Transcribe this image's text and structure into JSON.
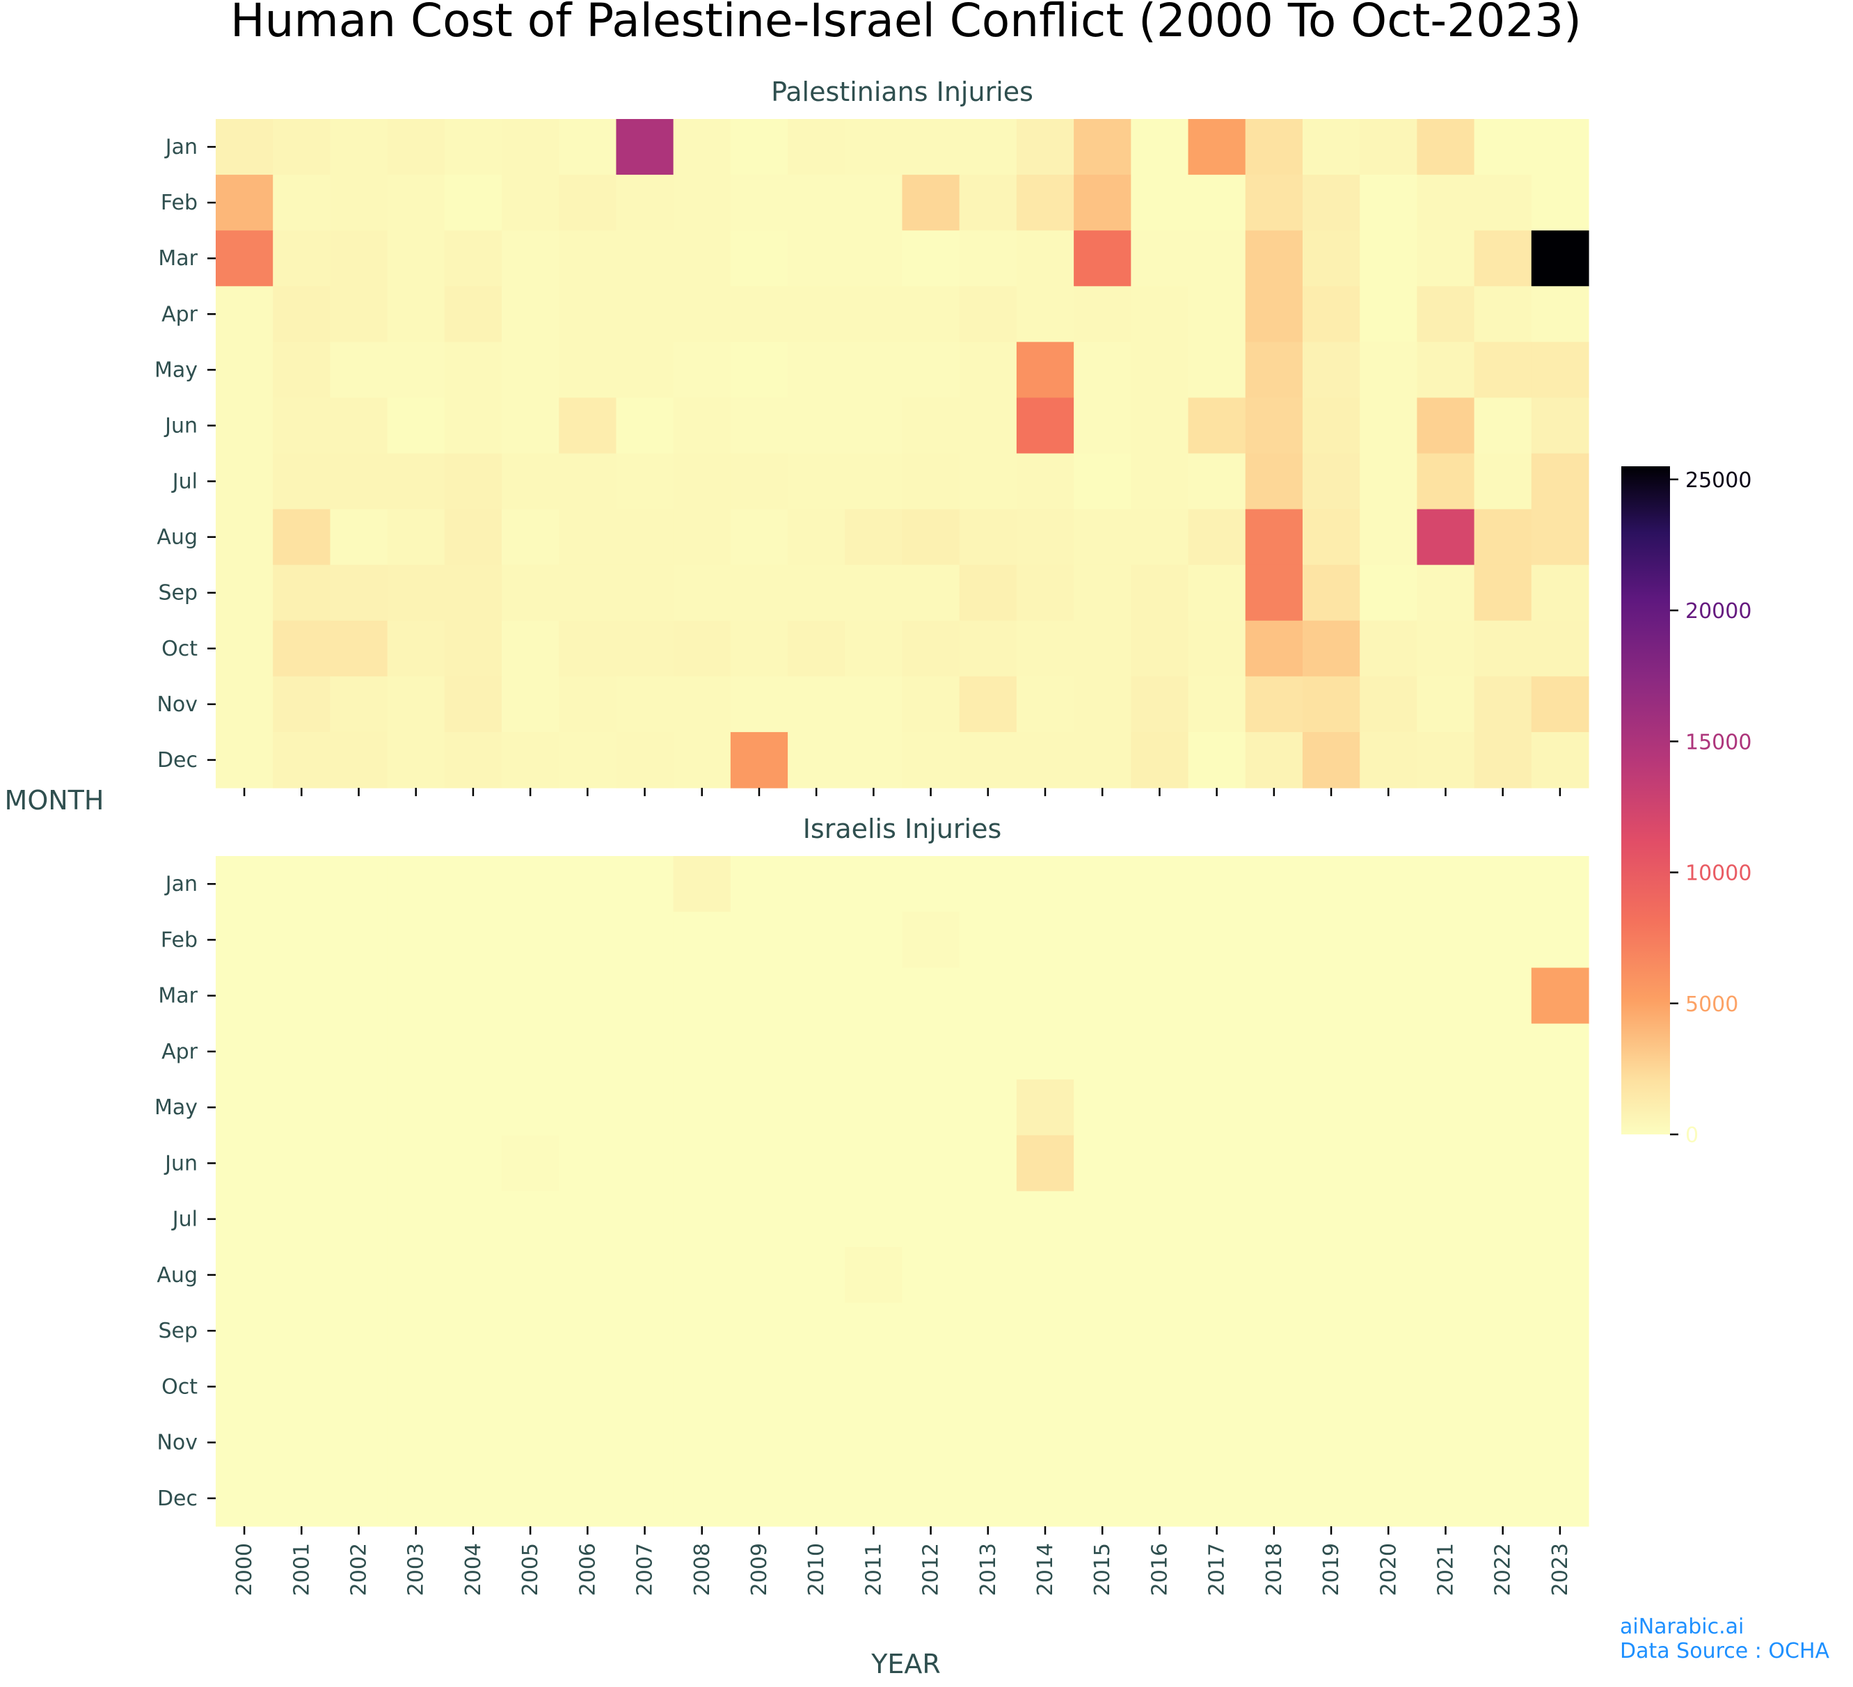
{
  "title": "Human Cost of Palestine-Israel Conflict (2000 To Oct-2023)",
  "xlabel": "YEAR",
  "ylabel": "MONTH",
  "credits": {
    "brand": "aiNarabic.ai",
    "source": "Data Source : OCHA"
  },
  "colors": {
    "text": "#2f4f4f",
    "credit": "#1e90ff",
    "colormap": "magma_r",
    "cmap_stops": [
      [
        0,
        "#fcfdbf"
      ],
      [
        0.08,
        "#fde1a0"
      ],
      [
        0.2,
        "#fca063"
      ],
      [
        0.32,
        "#f4715c"
      ],
      [
        0.44,
        "#e14d67"
      ],
      [
        0.56,
        "#b73779"
      ],
      [
        0.68,
        "#8c2981"
      ],
      [
        0.8,
        "#5f187f"
      ],
      [
        0.9,
        "#2c115f"
      ],
      [
        1,
        "#000004"
      ]
    ]
  },
  "chart_data": {
    "type": "heatmap",
    "title": "Human Cost of Palestine-Israel Conflict (2000 To Oct-2023)",
    "xlabel": "YEAR",
    "ylabel": "MONTH",
    "years": [
      "2000",
      "2001",
      "2002",
      "2003",
      "2004",
      "2005",
      "2006",
      "2007",
      "2008",
      "2009",
      "2010",
      "2011",
      "2012",
      "2013",
      "2014",
      "2015",
      "2016",
      "2017",
      "2018",
      "2019",
      "2020",
      "2021",
      "2022",
      "2023"
    ],
    "months": [
      "Jan",
      "Feb",
      "Mar",
      "Apr",
      "May",
      "Jun",
      "Jul",
      "Aug",
      "Sep",
      "Oct",
      "Nov",
      "Dec"
    ],
    "colorbar": {
      "min": 0,
      "max": 25500,
      "ticks": [
        0,
        5000,
        10000,
        15000,
        20000,
        25000
      ],
      "tick_labels": [
        "0",
        "5000",
        "10000",
        "15000",
        "20000",
        "25000"
      ]
    },
    "panels": [
      {
        "title": "Palestinians Injuries",
        "values": [
          [
            800,
            600,
            400,
            500,
            300,
            400,
            200,
            15000,
            300,
            100,
            400,
            300,
            300,
            300,
            800,
            3000,
            100,
            5000,
            2000,
            400,
            500,
            2000,
            100,
            100
          ],
          [
            4000,
            300,
            400,
            300,
            100,
            400,
            600,
            400,
            300,
            200,
            200,
            200,
            2500,
            600,
            1500,
            3500,
            100,
            100,
            1800,
            1000,
            50,
            400,
            400,
            100
          ],
          [
            7000,
            500,
            600,
            300,
            500,
            200,
            300,
            300,
            300,
            100,
            200,
            200,
            50,
            200,
            300,
            8000,
            200,
            200,
            2800,
            900,
            100,
            300,
            1500,
            25500
          ],
          [
            200,
            700,
            600,
            300,
            700,
            200,
            300,
            300,
            300,
            300,
            300,
            300,
            300,
            500,
            300,
            400,
            300,
            200,
            2800,
            1200,
            100,
            1000,
            400,
            200
          ],
          [
            200,
            600,
            200,
            200,
            300,
            200,
            300,
            300,
            200,
            100,
            200,
            200,
            200,
            300,
            6000,
            200,
            300,
            200,
            2500,
            800,
            200,
            500,
            1200,
            1200
          ],
          [
            200,
            500,
            500,
            100,
            300,
            200,
            1200,
            100,
            300,
            200,
            200,
            200,
            300,
            300,
            8000,
            200,
            300,
            2000,
            2400,
            900,
            200,
            2800,
            200,
            800
          ],
          [
            200,
            600,
            600,
            600,
            700,
            400,
            400,
            300,
            400,
            400,
            300,
            300,
            400,
            300,
            400,
            100,
            300,
            200,
            2500,
            1000,
            200,
            2000,
            300,
            1800
          ],
          [
            200,
            2000,
            200,
            400,
            800,
            200,
            400,
            400,
            400,
            200,
            400,
            700,
            900,
            600,
            500,
            400,
            400,
            800,
            7000,
            1200,
            200,
            12000,
            2000,
            1800
          ],
          [
            200,
            900,
            800,
            700,
            700,
            400,
            400,
            400,
            300,
            300,
            300,
            300,
            300,
            900,
            600,
            400,
            600,
            300,
            7000,
            1800,
            100,
            300,
            2000,
            500
          ],
          [
            200,
            1500,
            1500,
            600,
            700,
            200,
            500,
            500,
            600,
            400,
            600,
            400,
            600,
            500,
            400,
            400,
            600,
            400,
            3500,
            3000,
            500,
            400,
            600,
            600
          ],
          [
            200,
            800,
            500,
            400,
            800,
            200,
            400,
            300,
            300,
            200,
            200,
            200,
            400,
            1200,
            300,
            400,
            800,
            300,
            1800,
            2000,
            700,
            300,
            1000,
            2000
          ],
          [
            200,
            600,
            600,
            400,
            500,
            400,
            300,
            400,
            300,
            5500,
            200,
            200,
            300,
            400,
            400,
            400,
            900,
            100,
            700,
            2500,
            600,
            500,
            1000,
            500
          ]
        ]
      },
      {
        "title": "Israelis Injuries",
        "values": [
          [
            0,
            0,
            0,
            0,
            0,
            0,
            0,
            0,
            500,
            0,
            0,
            0,
            0,
            0,
            0,
            0,
            0,
            0,
            0,
            0,
            0,
            0,
            0,
            0
          ],
          [
            0,
            0,
            0,
            0,
            0,
            0,
            0,
            0,
            0,
            0,
            0,
            0,
            200,
            0,
            0,
            0,
            0,
            0,
            0,
            0,
            0,
            0,
            0,
            0
          ],
          [
            0,
            0,
            0,
            0,
            0,
            0,
            0,
            0,
            0,
            0,
            0,
            0,
            0,
            0,
            0,
            0,
            0,
            0,
            0,
            0,
            0,
            0,
            0,
            5000
          ],
          [
            0,
            0,
            0,
            0,
            0,
            0,
            0,
            0,
            0,
            0,
            0,
            0,
            0,
            0,
            0,
            0,
            0,
            0,
            0,
            0,
            0,
            0,
            0,
            0
          ],
          [
            0,
            0,
            0,
            0,
            0,
            0,
            0,
            0,
            0,
            0,
            0,
            0,
            0,
            0,
            800,
            0,
            0,
            0,
            0,
            0,
            0,
            0,
            0,
            0
          ],
          [
            0,
            0,
            0,
            0,
            0,
            150,
            0,
            0,
            0,
            0,
            0,
            0,
            0,
            0,
            1800,
            0,
            0,
            0,
            0,
            0,
            0,
            0,
            0,
            0
          ],
          [
            0,
            0,
            0,
            0,
            0,
            0,
            0,
            0,
            0,
            0,
            0,
            0,
            0,
            0,
            0,
            0,
            0,
            0,
            0,
            0,
            0,
            0,
            0,
            0
          ],
          [
            0,
            0,
            0,
            0,
            0,
            0,
            0,
            0,
            0,
            0,
            0,
            250,
            0,
            0,
            0,
            0,
            0,
            0,
            0,
            0,
            0,
            0,
            0,
            0
          ],
          [
            0,
            0,
            0,
            0,
            0,
            0,
            0,
            0,
            0,
            0,
            0,
            0,
            0,
            0,
            0,
            0,
            0,
            0,
            0,
            0,
            0,
            0,
            0,
            0
          ],
          [
            0,
            0,
            0,
            0,
            0,
            0,
            0,
            0,
            0,
            0,
            0,
            0,
            0,
            0,
            0,
            0,
            0,
            0,
            0,
            0,
            0,
            0,
            0,
            0
          ],
          [
            0,
            0,
            0,
            0,
            0,
            0,
            0,
            0,
            0,
            0,
            0,
            0,
            0,
            0,
            0,
            0,
            0,
            0,
            0,
            0,
            0,
            0,
            0,
            0
          ],
          [
            0,
            0,
            0,
            0,
            0,
            0,
            0,
            0,
            0,
            0,
            0,
            0,
            0,
            0,
            0,
            0,
            0,
            0,
            0,
            0,
            0,
            0,
            0,
            0
          ]
        ]
      }
    ]
  }
}
